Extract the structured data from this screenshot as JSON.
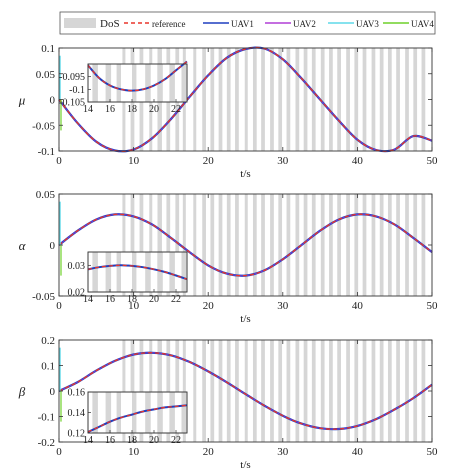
{
  "legend": {
    "placement": "top",
    "entries": [
      {
        "label": "DoS",
        "color": "#d6d6d6",
        "style": "patch"
      },
      {
        "label": "reference",
        "color": "#e8352b",
        "style": "dashed"
      },
      {
        "label": "UAV1",
        "color": "#1f3fbf",
        "style": "solid"
      },
      {
        "label": "UAV2",
        "color": "#b13fd6",
        "style": "solid"
      },
      {
        "label": "UAV3",
        "color": "#5fd8e8",
        "style": "solid"
      },
      {
        "label": "UAV4",
        "color": "#6fd12a",
        "style": "solid"
      }
    ]
  },
  "chart_data": [
    {
      "type": "line",
      "ylabel": "μ",
      "xlabel": "t/s",
      "xlim": [
        0,
        50
      ],
      "ylim": [
        -0.1,
        0.1
      ],
      "xticks": [
        0,
        10,
        20,
        30,
        40,
        50
      ],
      "yticks": [
        -0.1,
        -0.05,
        0,
        0.05,
        0.1
      ],
      "ytick_labels": [
        "-0.1",
        "-0.05",
        "0",
        "0.05",
        "0.1"
      ],
      "grid": false,
      "x": [
        0,
        2.5,
        5,
        7.5,
        10,
        12.5,
        15,
        17.5,
        20,
        22.5,
        25,
        27.5,
        30,
        32.5,
        35,
        37.5,
        40,
        42.5,
        45,
        47.5,
        50
      ],
      "series": [
        {
          "name": "reference",
          "values": [
            0,
            -0.046,
            -0.082,
            -0.099,
            -0.097,
            -0.075,
            -0.038,
            0.005,
            0.047,
            0.081,
            0.098,
            0.099,
            0.078,
            0.041,
            0.0,
            -0.041,
            -0.078,
            -0.098,
            -0.097,
            -0.071,
            -0.08
          ]
        }
      ],
      "inset": {
        "xlim": [
          14,
          23
        ],
        "ylim": [
          -0.105,
          -0.09
        ],
        "xticks": [
          14,
          16,
          18,
          20,
          22
        ],
        "yticks": [
          -0.095,
          -0.1,
          -0.105
        ],
        "ytick_labels": [
          "-0.095",
          "-0.1",
          "-0.105"
        ],
        "x": [
          14,
          15,
          16,
          17,
          18,
          19,
          20,
          21,
          22,
          23
        ],
        "values": [
          -0.0905,
          -0.0955,
          -0.0985,
          -0.1,
          -0.1005,
          -0.1,
          -0.0985,
          -0.096,
          -0.0925,
          -0.089
        ]
      }
    },
    {
      "type": "line",
      "ylabel": "α",
      "xlabel": "t/s",
      "xlim": [
        0,
        50
      ],
      "ylim": [
        -0.05,
        0.05
      ],
      "xticks": [
        0,
        10,
        20,
        30,
        40,
        50
      ],
      "yticks": [
        -0.05,
        0,
        0.05
      ],
      "ytick_labels": [
        "-0.05",
        "0",
        "0.05"
      ],
      "grid": false,
      "x": [
        0,
        2.5,
        5,
        7.5,
        10,
        12.5,
        15,
        17.5,
        20,
        22.5,
        25,
        27.5,
        30,
        32.5,
        35,
        37.5,
        40,
        42.5,
        45,
        47.5,
        50
      ],
      "series": [
        {
          "name": "reference",
          "values": [
            0,
            0.014,
            0.025,
            0.03,
            0.028,
            0.02,
            0.007,
            -0.007,
            -0.02,
            -0.028,
            -0.03,
            -0.025,
            -0.014,
            0.0,
            0.014,
            0.025,
            0.03,
            0.028,
            0.02,
            0.007,
            -0.007
          ]
        }
      ],
      "inset": {
        "xlim": [
          14,
          23
        ],
        "ylim": [
          0.02,
          0.035
        ],
        "xticks": [
          14,
          16,
          18,
          20,
          22
        ],
        "yticks": [
          0.03,
          0.02
        ],
        "ytick_labels": [
          "0.03",
          "0.02"
        ],
        "x": [
          14,
          15,
          16,
          17,
          18,
          19,
          20,
          21,
          22,
          23
        ],
        "values": [
          0.0285,
          0.0293,
          0.0298,
          0.03,
          0.0298,
          0.0293,
          0.0285,
          0.0275,
          0.0262,
          0.0248
        ]
      }
    },
    {
      "type": "line",
      "ylabel": "β",
      "xlabel": "t/s",
      "xlim": [
        0,
        50
      ],
      "ylim": [
        -0.2,
        0.2
      ],
      "xticks": [
        0,
        10,
        20,
        30,
        40,
        50
      ],
      "yticks": [
        -0.2,
        -0.1,
        0,
        0.1,
        0.2
      ],
      "ytick_labels": [
        "-0.2",
        "-0.1",
        "0",
        "0.1",
        "0.2"
      ],
      "grid": false,
      "x": [
        0,
        2.5,
        5,
        7.5,
        10,
        12.5,
        15,
        17.5,
        20,
        22.5,
        25,
        27.5,
        30,
        32.5,
        35,
        37.5,
        40,
        42.5,
        45,
        47.5,
        50
      ],
      "series": [
        {
          "name": "reference",
          "values": [
            0,
            0.035,
            0.08,
            0.118,
            0.143,
            0.15,
            0.14,
            0.114,
            0.077,
            0.034,
            -0.012,
            -0.057,
            -0.097,
            -0.128,
            -0.146,
            -0.149,
            -0.137,
            -0.11,
            -0.072,
            -0.028,
            0.025
          ]
        }
      ],
      "inset": {
        "xlim": [
          14,
          23
        ],
        "ylim": [
          0.12,
          0.16
        ],
        "xticks": [
          14,
          16,
          18,
          20,
          22
        ],
        "yticks": [
          0.16,
          0.14,
          0.12
        ],
        "ytick_labels": [
          "0.16",
          "0.14",
          "0.12"
        ],
        "x": [
          14,
          15,
          16,
          17,
          18,
          19,
          20,
          21,
          22,
          23
        ],
        "values": [
          0.121,
          0.126,
          0.131,
          0.135,
          0.138,
          0.141,
          0.143,
          0.145,
          0.146,
          0.147
        ]
      }
    }
  ],
  "dos_intervals": [
    [
      8.5,
      8.9
    ],
    [
      9.6,
      10.1
    ],
    [
      10.8,
      11.3
    ],
    [
      12.1,
      12.5
    ],
    [
      13.2,
      13.8
    ],
    [
      14.4,
      14.9
    ],
    [
      15.6,
      16.1
    ],
    [
      16.6,
      17.0
    ],
    [
      18.0,
      18.4
    ],
    [
      19.2,
      19.7
    ],
    [
      20.3,
      20.8
    ],
    [
      21.4,
      21.9
    ],
    [
      22.5,
      23.0
    ],
    [
      23.6,
      24.1
    ],
    [
      24.9,
      25.3
    ],
    [
      26.0,
      26.5
    ],
    [
      27.1,
      27.6
    ],
    [
      28.3,
      28.8
    ],
    [
      29.4,
      29.9
    ],
    [
      30.5,
      31.0
    ],
    [
      31.7,
      32.2
    ],
    [
      32.8,
      33.3
    ],
    [
      33.9,
      34.4
    ],
    [
      35.1,
      35.6
    ],
    [
      36.2,
      36.7
    ],
    [
      37.3,
      37.8
    ],
    [
      38.5,
      39.0
    ],
    [
      39.6,
      40.1
    ],
    [
      40.7,
      41.2
    ],
    [
      41.9,
      42.4
    ],
    [
      43.0,
      43.5
    ],
    [
      44.1,
      44.6
    ],
    [
      45.2,
      45.7
    ],
    [
      46.4,
      46.9
    ],
    [
      47.5,
      48.0
    ],
    [
      48.6,
      49.1
    ]
  ]
}
